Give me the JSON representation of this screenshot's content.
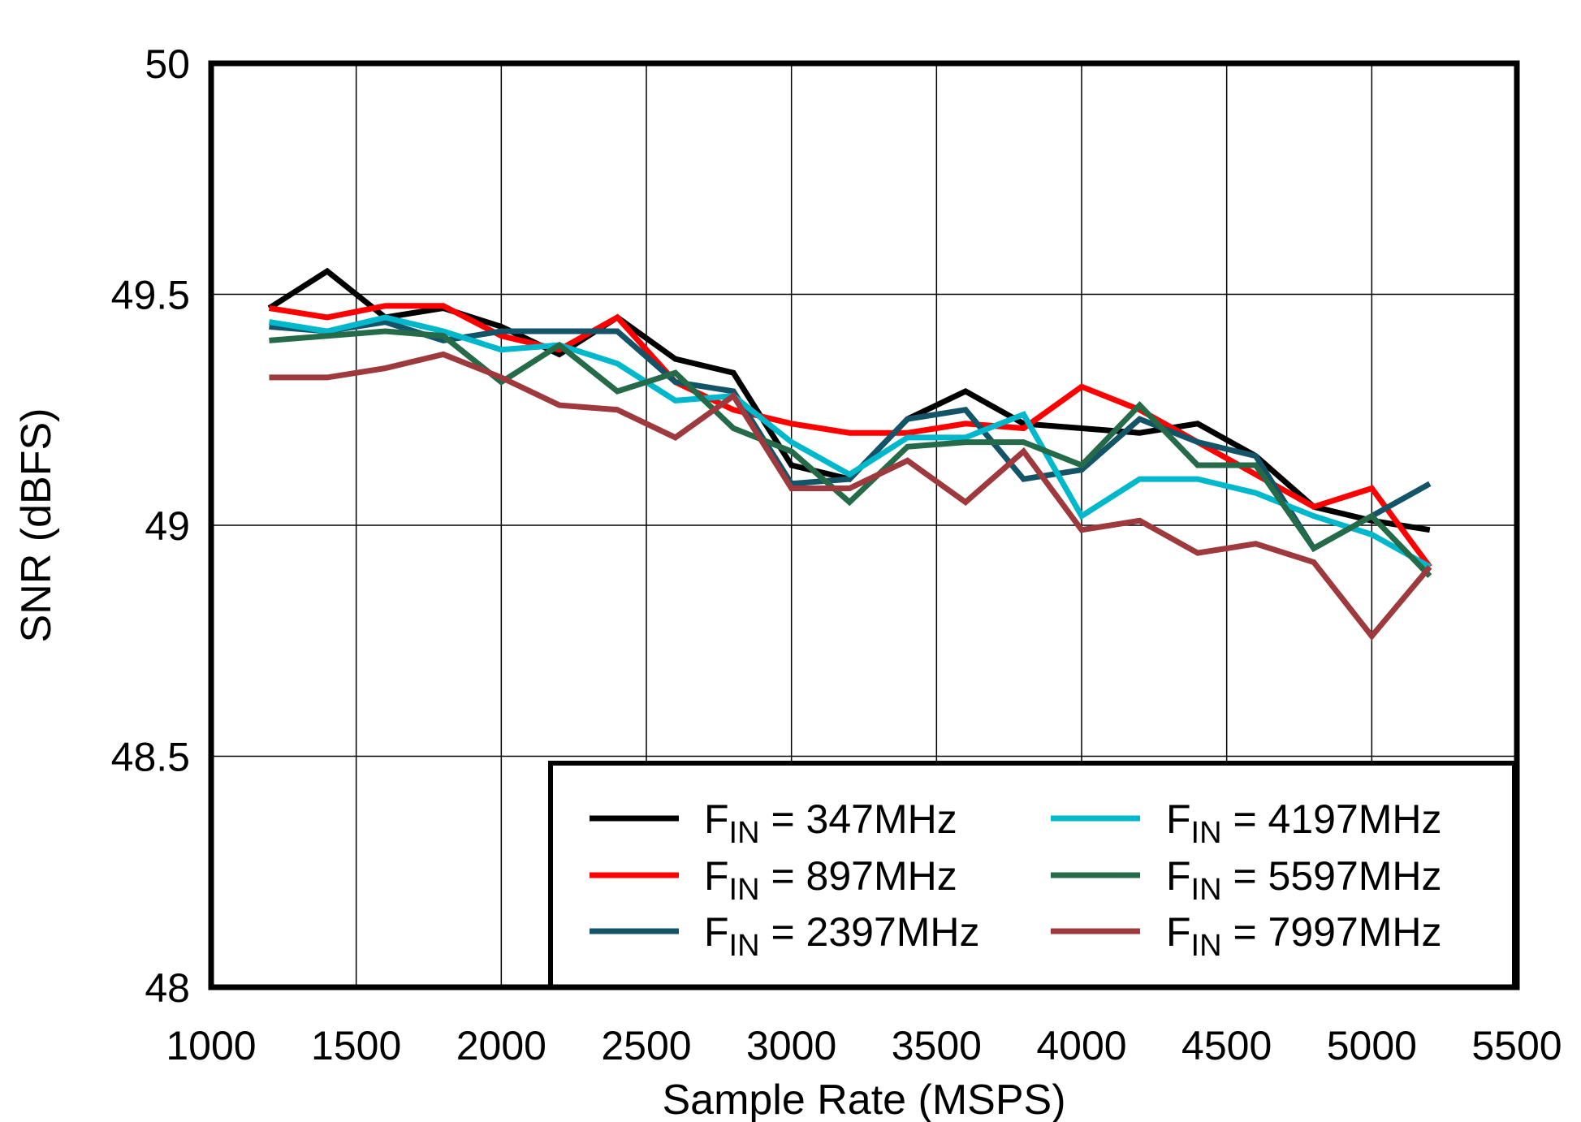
{
  "chart_data": {
    "type": "line",
    "title": "",
    "xlabel": "Sample Rate  (MSPS)",
    "ylabel": "SNR  (dBFS)",
    "xlim": [
      1000,
      5500
    ],
    "ylim": [
      48,
      50
    ],
    "xticks": [
      "1000",
      "1500",
      "2000",
      "2500",
      "3000",
      "3500",
      "4000",
      "4500",
      "5000",
      "5500"
    ],
    "yticks": [
      "48",
      "48.5",
      "49",
      "49.5",
      "50"
    ],
    "grid": true,
    "legend_position": "bottom-right",
    "x": [
      1200,
      1400,
      1600,
      1800,
      2000,
      2200,
      2400,
      2600,
      2800,
      3000,
      3200,
      3400,
      3600,
      3800,
      4000,
      4200,
      4400,
      4600,
      4800,
      5000,
      5200
    ],
    "series": [
      {
        "name": "FIN = 347MHz",
        "color": "#000000",
        "values": [
          49.47,
          49.55,
          49.45,
          49.47,
          49.43,
          49.37,
          49.45,
          49.36,
          49.33,
          49.13,
          49.1,
          49.23,
          49.29,
          49.22,
          49.21,
          49.2,
          49.22,
          49.15,
          49.04,
          49.01,
          48.99
        ]
      },
      {
        "name": "FIN = 897MHz",
        "color": "#FF0000",
        "values": [
          49.47,
          49.45,
          49.475,
          49.475,
          49.41,
          49.38,
          49.45,
          49.31,
          49.25,
          49.22,
          49.2,
          49.2,
          49.22,
          49.21,
          49.3,
          49.25,
          49.18,
          49.11,
          49.04,
          49.08,
          48.91
        ]
      },
      {
        "name": "FIN = 2397MHz",
        "color": "#135468",
        "values": [
          49.43,
          49.42,
          49.44,
          49.4,
          49.42,
          49.42,
          49.42,
          49.31,
          49.29,
          49.09,
          49.1,
          49.23,
          49.25,
          49.1,
          49.12,
          49.23,
          49.18,
          49.15,
          48.95,
          49.02,
          49.09
        ]
      },
      {
        "name": "FIN = 4197MHz",
        "color": "#00B8CC",
        "values": [
          49.44,
          49.42,
          49.45,
          49.42,
          49.38,
          49.39,
          49.35,
          49.27,
          49.28,
          49.18,
          49.11,
          49.19,
          49.19,
          49.24,
          49.02,
          49.1,
          49.1,
          49.07,
          49.02,
          48.98,
          48.91
        ]
      },
      {
        "name": "FIN = 5597MHz",
        "color": "#256B4A",
        "values": [
          49.4,
          49.41,
          49.42,
          49.41,
          49.31,
          49.39,
          49.29,
          49.33,
          49.21,
          49.16,
          49.05,
          49.17,
          49.18,
          49.18,
          49.13,
          49.26,
          49.13,
          49.13,
          48.95,
          49.02,
          48.89
        ]
      },
      {
        "name": "FIN = 7997MHz",
        "color": "#9E3A3E",
        "values": [
          49.32,
          49.32,
          49.34,
          49.37,
          49.32,
          49.26,
          49.25,
          49.19,
          49.28,
          49.08,
          49.08,
          49.14,
          49.05,
          49.16,
          48.99,
          49.01,
          48.94,
          48.96,
          48.92,
          48.76,
          48.91
        ]
      }
    ]
  }
}
